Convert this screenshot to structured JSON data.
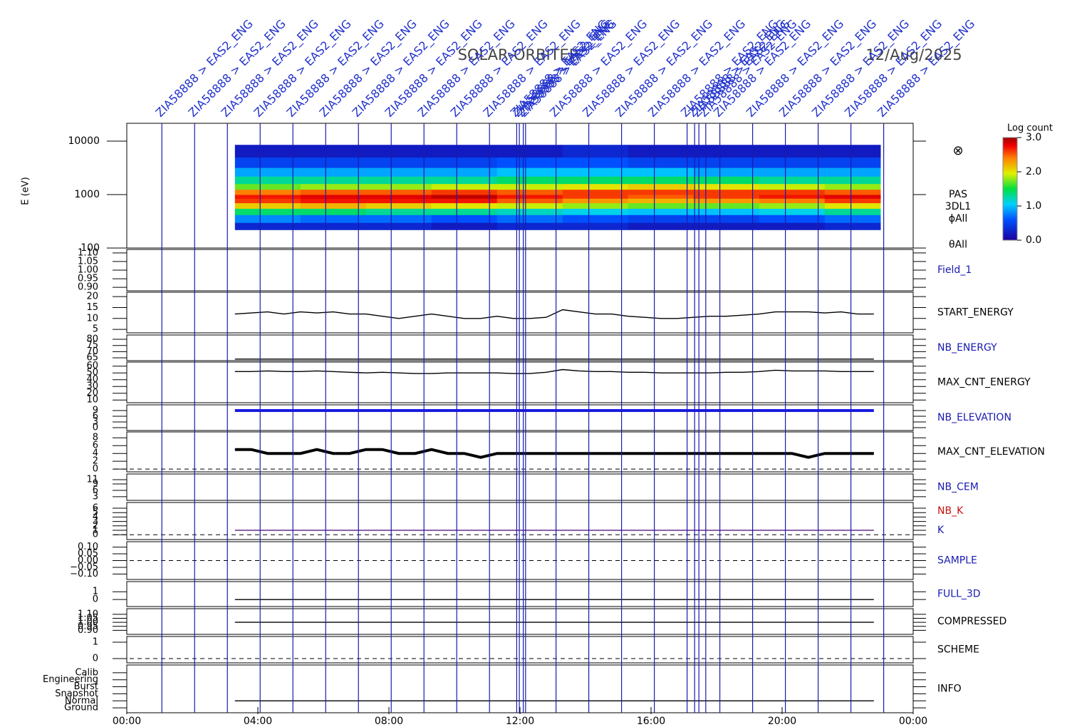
{
  "chart_data": {
    "type": "stackplot",
    "title": "SOLAR-ORBITER",
    "subtitle": "12/Aug/2025",
    "xlim": [
      0,
      24
    ],
    "xticks": [
      {
        "value": 0,
        "label": "00:00"
      },
      {
        "value": 4,
        "label": "04:00"
      },
      {
        "value": 8,
        "label": "08:00"
      },
      {
        "value": 12,
        "label": "12:00"
      },
      {
        "value": 16,
        "label": "16:00"
      },
      {
        "value": 20,
        "label": "20:00"
      },
      {
        "value": 24,
        "label": "00:00"
      }
    ],
    "x": [
      3.3,
      3.8,
      4.3,
      4.8,
      5.3,
      5.8,
      6.3,
      6.8,
      7.3,
      7.8,
      8.3,
      8.8,
      9.3,
      9.8,
      10.3,
      10.8,
      11.3,
      11.8,
      12.3,
      12.8,
      13.3,
      13.8,
      14.3,
      14.8,
      15.3,
      15.8,
      16.3,
      16.8,
      17.3,
      17.8,
      18.3,
      18.8,
      19.3,
      19.8,
      20.3,
      20.8,
      21.3,
      21.8,
      22.3,
      22.8
    ],
    "events": [
      {
        "time": 1.07,
        "label": "ZIA58888 > EAS2_ENG"
      },
      {
        "time": 2.07,
        "label": "ZIA58888 > EAS2_ENG"
      },
      {
        "time": 3.07,
        "label": "ZIA58888 > EAS2_ENG"
      },
      {
        "time": 4.07,
        "label": "ZIA58888 > EAS2_ENG"
      },
      {
        "time": 5.07,
        "label": "ZIA58888 > EAS2_ENG"
      },
      {
        "time": 6.07,
        "label": "ZIA58888 > EAS2_ENG"
      },
      {
        "time": 7.07,
        "label": "ZIA58888 > EAS2_ENG"
      },
      {
        "time": 8.07,
        "label": "ZIA58888 > EAS2_ENG"
      },
      {
        "time": 9.07,
        "label": "ZIA58888 > EAS2_ENG"
      },
      {
        "time": 10.07,
        "label": "ZIA58888 > EAS2_ENG"
      },
      {
        "time": 11.07,
        "label": "ZIA58888 > EAS2_ENG"
      },
      {
        "time": 11.9,
        "label": "ZIA58888 > EAS2_ENG"
      },
      {
        "time": 11.98,
        "label": "ZIA58888 > EAS2_ENG"
      },
      {
        "time": 12.1,
        "label": "ZIA58888 > EAS2_ENG"
      },
      {
        "time": 12.17,
        "label": "ZIA58888 > EAS2_ENG"
      },
      {
        "time": 13.1,
        "label": "ZIA58888 > EAS2_ENG"
      },
      {
        "time": 14.1,
        "label": "ZIA58888 > EAS2_ENG"
      },
      {
        "time": 15.1,
        "label": "ZIA58888 > EAS2_ENG"
      },
      {
        "time": 16.1,
        "label": "ZIA58888 > EAS2_ENG"
      },
      {
        "time": 17.1,
        "label": "ZIA58888 > EAS2_ENG"
      },
      {
        "time": 17.33,
        "label": "ZIA58888 > EAS2_ENG"
      },
      {
        "time": 17.46,
        "label": "ZIA58888 > EAS2_ENG"
      },
      {
        "time": 17.67,
        "label": "ZIA58888 > EAS2_ENG"
      },
      {
        "time": 18.1,
        "label": "ZIA58888 > EAS2_ENG"
      },
      {
        "time": 19.1,
        "label": "ZIA58888 > EAS2_ENG"
      },
      {
        "time": 20.1,
        "label": "ZIA58888 > EAS2_ENG"
      },
      {
        "time": 21.1,
        "label": "ZIA58888 > EAS2_ENG"
      },
      {
        "time": 22.1,
        "label": "ZIA58888 > EAS2_ENG"
      },
      {
        "time": 23.1,
        "label": "ZIA58888 > EAS2_ENG"
      }
    ],
    "spectrogram": {
      "type": "heatmap",
      "ylabel": "E (eV)",
      "log": true,
      "ylim": [
        100,
        21500
      ],
      "yticks": [
        100,
        1000,
        10000
      ],
      "side_labels": [
        "PAS",
        "3DL1",
        "ϕAll",
        "θAll"
      ],
      "colorbar_label": "Log count",
      "zlim": [
        0,
        3
      ],
      "zticks": [
        {
          "value": 0,
          "label": "0.0"
        },
        {
          "value": 1,
          "label": "1.0"
        },
        {
          "value": 2,
          "label": "2.0"
        },
        {
          "value": 3,
          "label": "3.0"
        }
      ],
      "x_bins": [
        3.3,
        5.3,
        7.3,
        9.3,
        11.3,
        13.3,
        15.3,
        17.3,
        19.3,
        21.3,
        23.0
      ],
      "y_bins": [
        220,
        300,
        420,
        550,
        700,
        850,
        1000,
        1250,
        1600,
        2200,
        3200,
        5000,
        8500
      ],
      "z": [
        [
          0.3,
          0.8,
          1.4,
          2.1,
          2.6,
          2.7,
          2.4,
          1.7,
          1.3,
          0.9,
          0.5,
          0.2
        ],
        [
          0.3,
          0.7,
          1.4,
          2.2,
          2.7,
          2.8,
          2.5,
          1.8,
          1.3,
          0.9,
          0.5,
          0.2
        ],
        [
          0.3,
          0.7,
          1.3,
          2.1,
          2.7,
          2.8,
          2.5,
          1.8,
          1.3,
          0.9,
          0.5,
          0.2
        ],
        [
          0.2,
          0.6,
          1.3,
          2.0,
          2.7,
          2.9,
          2.6,
          1.9,
          1.3,
          0.9,
          0.5,
          0.2
        ],
        [
          0.3,
          0.7,
          1.2,
          1.9,
          2.5,
          2.7,
          2.5,
          1.9,
          1.4,
          1.0,
          0.6,
          0.2
        ],
        [
          0.3,
          0.6,
          1.1,
          1.8,
          2.3,
          2.6,
          2.6,
          2.0,
          1.4,
          1.0,
          0.6,
          0.3
        ],
        [
          0.2,
          0.5,
          1.0,
          1.7,
          2.2,
          2.5,
          2.6,
          2.1,
          1.4,
          1.0,
          0.5,
          0.2
        ],
        [
          0.2,
          0.5,
          1.0,
          1.7,
          2.3,
          2.6,
          2.6,
          2.0,
          1.4,
          0.9,
          0.5,
          0.2
        ],
        [
          0.2,
          0.6,
          1.1,
          1.8,
          2.4,
          2.7,
          2.6,
          1.9,
          1.3,
          0.9,
          0.5,
          0.2
        ],
        [
          0.3,
          0.7,
          1.3,
          2.0,
          2.6,
          2.8,
          2.5,
          1.8,
          1.3,
          0.9,
          0.5,
          0.2
        ]
      ]
    },
    "panels": [
      {
        "label": "Field_1",
        "label_color": "#1a1ab0",
        "ylim": [
          0.88,
          1.12
        ],
        "yticks": [
          {
            "value": 0.9,
            "label": "0.90"
          },
          {
            "value": 0.95,
            "label": "0.95"
          },
          {
            "value": 1.0,
            "label": "1.00"
          },
          {
            "value": 1.05,
            "label": "1.05"
          },
          {
            "value": 1.1,
            "label": "1.10"
          }
        ],
        "series": []
      },
      {
        "label": "START_ENERGY",
        "label_color": "#000000",
        "ylim": [
          3.4,
          22
        ],
        "yticks": [
          5,
          10,
          15,
          20
        ],
        "series": [
          {
            "color": "#000000",
            "values": [
              12,
              12.5,
              13,
              12,
              13,
              12.5,
              13,
              12,
              12,
              11,
              10,
              11,
              12,
              11,
              10,
              10,
              11,
              10,
              10,
              10.5,
              14,
              13,
              12,
              12,
              11,
              10.5,
              10,
              10,
              10.5,
              11,
              11,
              11.5,
              12,
              13,
              13,
              13,
              12.5,
              13,
              12,
              12
            ]
          }
        ]
      },
      {
        "label": "NB_ENERGY",
        "label_color": "#1a1ab0",
        "ylim": [
          62.7,
          83.5
        ],
        "yticks": [
          65,
          70,
          75,
          80
        ],
        "series": [
          {
            "color": "#000000",
            "values": [
              64,
              64,
              64,
              64,
              64,
              64,
              64,
              64,
              64,
              64,
              64,
              64,
              64,
              64,
              64,
              64,
              64,
              64,
              64,
              64,
              64,
              64,
              64,
              64,
              64,
              64,
              64,
              64,
              64,
              64,
              64,
              64,
              64,
              64,
              64,
              64,
              64,
              64,
              64,
              64
            ]
          }
        ]
      },
      {
        "label": "MAX_CNT_ENERGY",
        "label_color": "#000000",
        "ylim": [
          6,
          66
        ],
        "yticks": [
          10,
          20,
          30,
          40,
          50,
          60
        ],
        "series": [
          {
            "color": "#000000",
            "values": [
              52,
              52,
              53,
              52,
              52,
              53,
              52,
              51,
              50,
              51,
              50,
              49,
              49,
              50,
              50,
              50,
              50,
              49,
              49,
              51,
              55,
              53,
              52,
              52,
              51,
              51,
              50,
              50,
              50,
              50,
              51,
              51,
              52,
              54,
              53,
              53,
              53,
              52,
              52,
              52
            ]
          }
        ]
      },
      {
        "label": "NB_ELEVATION",
        "label_color": "#1a1ab0",
        "ylim": [
          -1.5,
          12
        ],
        "yticks": [
          0,
          3,
          6,
          9
        ],
        "series": [
          {
            "color": "#1a1ae0",
            "values": [
              9,
              9,
              9,
              9,
              9,
              9,
              9,
              9,
              9,
              9,
              9,
              9,
              9,
              9,
              9,
              9,
              9,
              9,
              9,
              9,
              9,
              9,
              9,
              9,
              9,
              9,
              9,
              9,
              9,
              9,
              9,
              9,
              9,
              9,
              9,
              9,
              9,
              9,
              9,
              9
            ]
          }
        ]
      },
      {
        "label": "MAX_CNT_ELEVATION",
        "label_color": "#000000",
        "ylim": [
          -0.7,
          9.5
        ],
        "yticks": [
          0,
          2,
          4,
          6,
          8
        ],
        "zero_line": true,
        "series": [
          {
            "color": "#000000",
            "values": [
              5,
              5,
              4,
              4,
              4,
              5,
              4,
              4,
              5,
              5,
              4,
              4,
              5,
              4,
              4,
              3,
              4,
              4,
              4,
              4,
              4,
              4,
              4,
              4,
              4,
              4,
              4,
              4,
              4,
              4,
              4,
              4,
              4,
              4,
              4,
              3,
              4,
              4,
              4,
              4
            ]
          }
        ]
      },
      {
        "label": "NB_CEM",
        "label_color": "#1a1ab0",
        "ylim": [
          1.3,
          13.7
        ],
        "yticks": [
          3,
          6,
          9,
          11
        ],
        "series": []
      },
      {
        "ylim": [
          -1.1,
          7.3
        ],
        "yticks": [
          0,
          1,
          2,
          3,
          4,
          5,
          6
        ],
        "zero_line": true,
        "series": [
          {
            "name": "NB_K",
            "color": "#cc1010",
            "values": [
              1,
              1,
              1,
              1,
              1,
              1,
              1,
              1,
              1,
              1,
              1,
              1,
              1,
              1,
              1,
              1,
              1,
              1,
              1,
              1,
              1,
              1,
              1,
              1,
              1,
              1,
              1,
              1,
              1,
              1,
              1,
              1,
              1,
              1,
              1,
              1,
              1,
              1,
              1,
              1
            ]
          },
          {
            "name": "K",
            "color": "#1a1ab0",
            "values": [
              1,
              1,
              1,
              1,
              1,
              1,
              1,
              1,
              1,
              1,
              1,
              1,
              1,
              1,
              1,
              1,
              1,
              1,
              1,
              1,
              1,
              1,
              1,
              1,
              1,
              1,
              1,
              1,
              1,
              1,
              1,
              1,
              1,
              1,
              1,
              1,
              1,
              1,
              1,
              1
            ]
          }
        ]
      },
      {
        "label": "SAMPLE",
        "label_color": "#1a1ab0",
        "ylim": [
          -0.14,
          0.14
        ],
        "zero_line": true,
        "yticks": [
          {
            "value": -0.1,
            "label": "−0.10"
          },
          {
            "value": -0.05,
            "label": "−0.05"
          },
          {
            "value": 0,
            "label": "0.00"
          },
          {
            "value": 0.05,
            "label": "0.05"
          },
          {
            "value": 0.1,
            "label": "0.10"
          }
        ],
        "series": []
      },
      {
        "label": "FULL_3D",
        "label_color": "#1a1ab0",
        "ylim": [
          -0.9,
          2.3
        ],
        "yticks": [
          0,
          1
        ],
        "series": [
          {
            "color": "#000000",
            "values": [
              0,
              0,
              0,
              0,
              0,
              0,
              0,
              0,
              0,
              0,
              0,
              0,
              0,
              0,
              0,
              0,
              0,
              0,
              0,
              0,
              0,
              0,
              0,
              0,
              0,
              0,
              0,
              0,
              0,
              0,
              0,
              0,
              0,
              0,
              0,
              0,
              0,
              0,
              0,
              0
            ]
          }
        ]
      },
      {
        "label": "COMPRESSED",
        "label_color": "#000000",
        "ylim": [
          0.85,
          1.17
        ],
        "yticks": [
          {
            "value": 0.9,
            "label": "0.90"
          },
          {
            "value": 0.95,
            "label": "0.95"
          },
          {
            "value": 1.0,
            "label": "1.00"
          },
          {
            "value": 1.05,
            "label": "1.05"
          },
          {
            "value": 1.1,
            "label": "1.10"
          }
        ],
        "series": [
          {
            "color": "#000000",
            "values": [
              1,
              1,
              1,
              1,
              1,
              1,
              1,
              1,
              1,
              1,
              1,
              1,
              1,
              1,
              1,
              1,
              1,
              1,
              1,
              1,
              1,
              1,
              1,
              1,
              1,
              1,
              1,
              1,
              1,
              1,
              1,
              1,
              1,
              1,
              1,
              1,
              1,
              1,
              1,
              1
            ]
          }
        ]
      },
      {
        "label": "SCHEME",
        "label_color": "#000000",
        "ylim": [
          -0.26,
          1.35
        ],
        "yticks": [
          0,
          1
        ],
        "zero_line": true,
        "series": []
      },
      {
        "label": "INFO",
        "label_color": "#000000",
        "ylim": [
          -0.7,
          6.1
        ],
        "yticks": [
          {
            "value": 0,
            "label": "Ground"
          },
          {
            "value": 1,
            "label": "Normal"
          },
          {
            "value": 2,
            "label": "Snapshot"
          },
          {
            "value": 3,
            "label": "Burst"
          },
          {
            "value": 4,
            "label": "Engineering"
          },
          {
            "value": 5,
            "label": "Calib"
          }
        ],
        "series": [
          {
            "color": "#000000",
            "values": [
              1,
              1,
              1,
              1,
              1,
              1,
              1,
              1,
              1,
              1,
              1,
              1,
              1,
              1,
              1,
              1,
              1,
              1,
              1,
              1,
              1,
              1,
              1,
              1,
              1,
              1,
              1,
              1,
              1,
              1,
              1,
              1,
              1,
              1,
              1,
              1,
              1,
              1,
              1,
              1
            ]
          }
        ]
      }
    ]
  }
}
